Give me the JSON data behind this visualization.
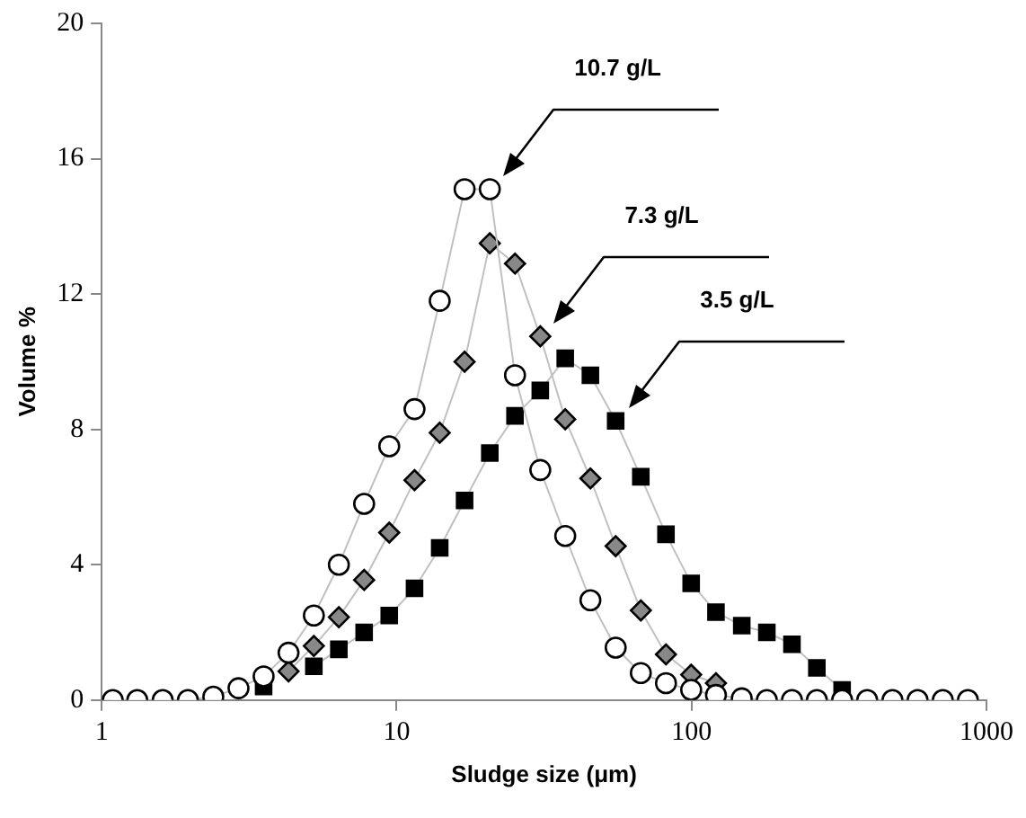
{
  "chart_data": {
    "type": "line",
    "xlabel": "Sludge size (μm)",
    "ylabel": "Volume %",
    "log": "x",
    "xlim": [
      1,
      1000
    ],
    "xticks": [
      1,
      10,
      100,
      1000
    ],
    "ylim": [
      0,
      20
    ],
    "yticks": [
      0,
      4,
      8,
      12,
      16,
      20
    ],
    "legend": false,
    "line_style": "solid",
    "x": [
      1.09,
      1.32,
      1.61,
      1.96,
      2.39,
      2.91,
      3.54,
      4.3,
      5.24,
      6.37,
      7.76,
      9.44,
      11.5,
      14,
      17,
      20.7,
      25.2,
      30.7,
      37.3,
      45.4,
      55.3,
      67.3,
      81.9,
      99.7,
      121,
      148,
      180,
      219,
      266,
      324,
      394,
      480,
      584,
      711,
      865
    ],
    "series": [
      {
        "marker": "square",
        "color": "#000000",
        "values": [
          null,
          null,
          null,
          null,
          null,
          null,
          0.4,
          null,
          1,
          1.5,
          2,
          2.5,
          3.3,
          4.5,
          5.9,
          7.3,
          8.4,
          9.15,
          10.1,
          9.6,
          8.25,
          6.6,
          4.9,
          3.45,
          2.6,
          2.2,
          2,
          1.65,
          0.95,
          0.3,
          null,
          null,
          null,
          null,
          null
        ]
      },
      {
        "marker": "diamond",
        "color": "#888888",
        "values": [
          null,
          null,
          null,
          null,
          null,
          null,
          null,
          0.85,
          1.6,
          2.45,
          3.55,
          4.95,
          6.5,
          7.9,
          10,
          13.5,
          12.9,
          10.75,
          8.3,
          6.55,
          4.55,
          2.65,
          1.35,
          0.75,
          0.5,
          null,
          null,
          null,
          null,
          null,
          null,
          null,
          null,
          null,
          null
        ]
      },
      {
        "marker": "circle",
        "color": "#ffffff",
        "values": [
          0,
          0,
          0,
          0,
          0.1,
          0.35,
          0.7,
          1.4,
          2.5,
          4,
          5.8,
          7.5,
          8.6,
          11.8,
          15.1,
          15.1,
          9.6,
          6.8,
          4.85,
          2.95,
          1.55,
          0.8,
          0.5,
          0.3,
          0.15,
          0.05,
          0,
          0,
          0,
          0,
          0,
          0,
          0,
          0,
          0
        ]
      }
    ],
    "annotations": [
      "10.7 g/L",
      "7.3 g/L",
      "3.5 g/L"
    ]
  }
}
